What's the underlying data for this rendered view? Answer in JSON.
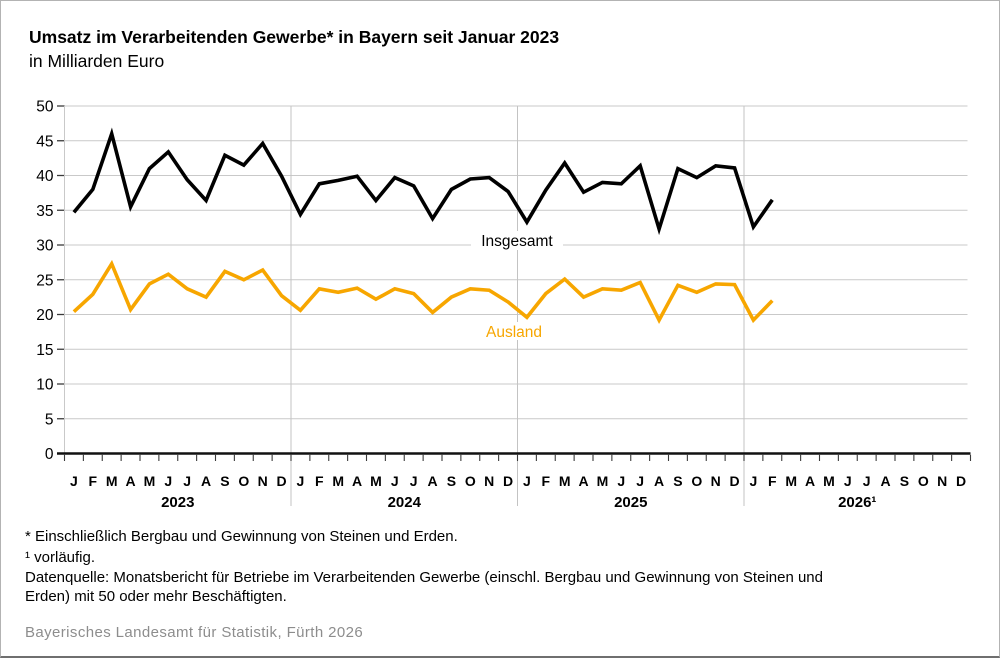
{
  "header": {
    "title": "Umsatz im Verarbeitenden Gewerbe* in Bayern seit Januar 2023",
    "subtitle": "in Milliarden Euro"
  },
  "chart_data": {
    "type": "line",
    "title": "Umsatz im Verarbeitenden Gewerbe in Bayern seit Januar 2023",
    "ylabel": "Milliarden Euro",
    "ylim": [
      0,
      50
    ],
    "ytick_step": 5,
    "grid": true,
    "month_letters": [
      "J",
      "F",
      "M",
      "A",
      "M",
      "J",
      "J",
      "A",
      "S",
      "O",
      "N",
      "D"
    ],
    "year_labels": [
      "2023",
      "2024",
      "2025",
      "2026¹"
    ],
    "months_total": 48,
    "series": [
      {
        "name": "Insgesamt",
        "color": "#000000",
        "values": [
          34.7,
          38.0,
          46.0,
          35.5,
          41.0,
          43.4,
          39.4,
          36.4,
          42.9,
          41.5,
          44.6,
          39.9,
          34.4,
          38.8,
          39.3,
          39.9,
          36.4,
          39.7,
          38.5,
          33.8,
          38.0,
          39.5,
          39.7,
          37.7,
          33.3,
          37.9,
          41.8,
          37.6,
          39.0,
          38.8,
          41.4,
          32.3,
          41.0,
          39.7,
          41.4,
          41.1,
          32.6,
          36.5
        ]
      },
      {
        "name": "Ausland",
        "color": "#F7A600",
        "values": [
          20.4,
          22.9,
          27.3,
          20.7,
          24.4,
          25.8,
          23.7,
          22.5,
          26.2,
          25.0,
          26.4,
          22.7,
          20.6,
          23.7,
          23.2,
          23.8,
          22.2,
          23.7,
          23.0,
          20.3,
          22.5,
          23.7,
          23.5,
          21.8,
          19.6,
          23.0,
          25.1,
          22.5,
          23.7,
          23.5,
          24.6,
          19.2,
          24.2,
          23.2,
          24.4,
          24.3,
          19.2,
          22.0
        ]
      }
    ]
  },
  "footnotes": [
    "* Einschließlich Bergbau und Gewinnung von Steinen und Erden.",
    "¹ vorläufig.",
    "Datenquelle: Monatsbericht für Betriebe im Verarbeitenden Gewerbe (einschl. Bergbau und Gewinnung von Steinen und",
    "Erden) mit 50 oder mehr Beschäftigten."
  ],
  "footer": {
    "text": "Bayerisches Landesamt für Statistik, Fürth 2026"
  }
}
